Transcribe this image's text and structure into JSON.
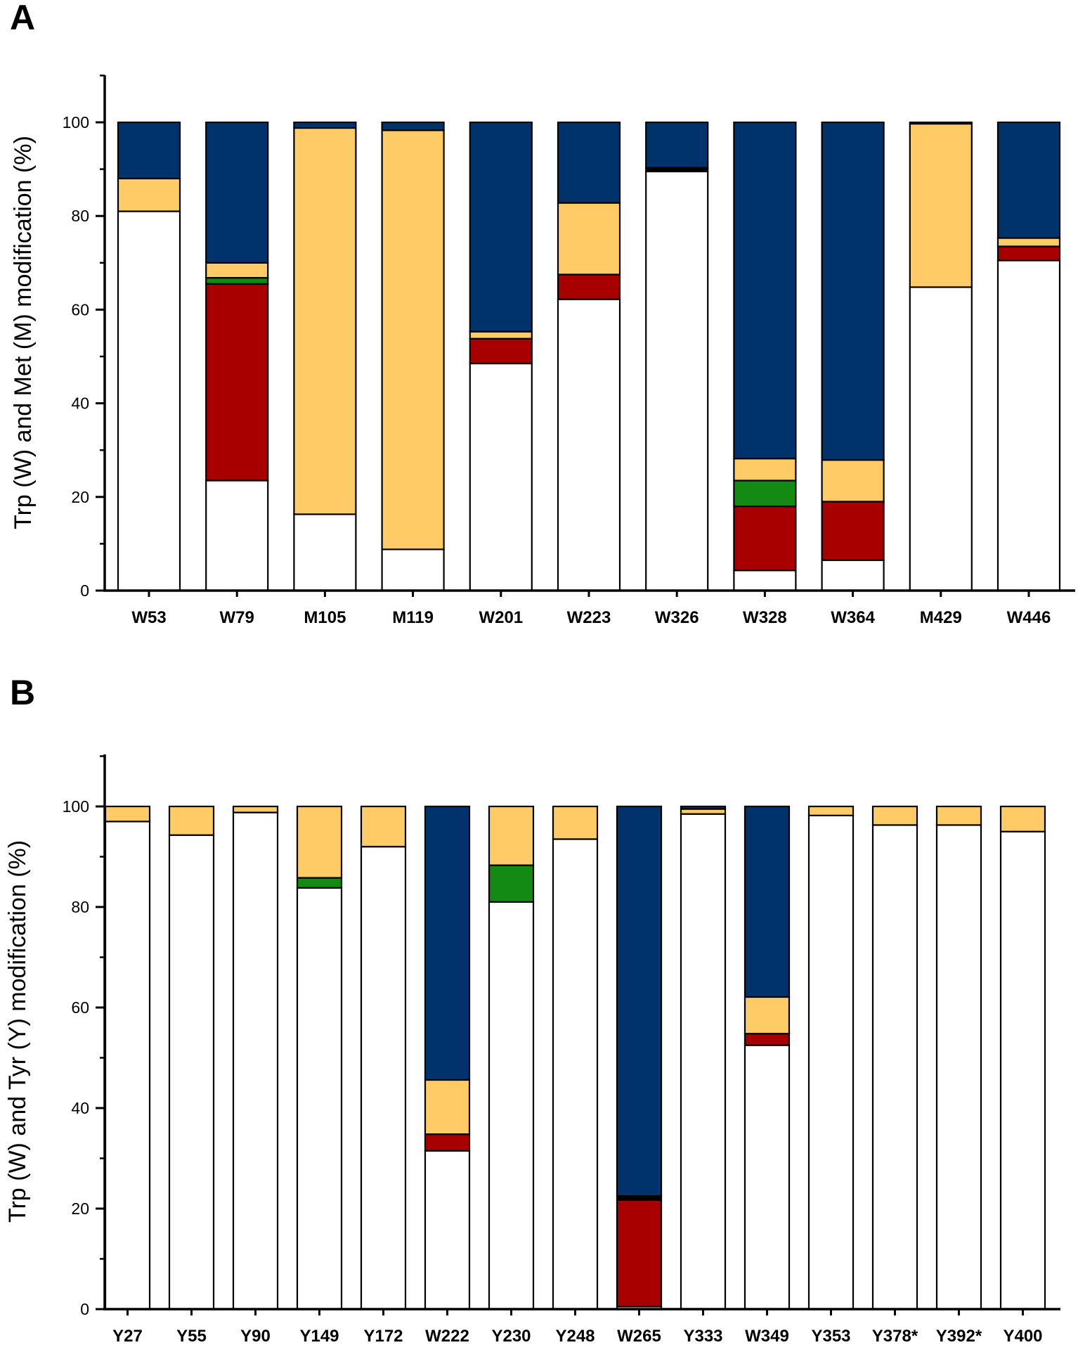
{
  "figure": {
    "panel_labels": [
      "A",
      "B"
    ]
  },
  "chart_data": [
    {
      "panel": "A",
      "type": "bar",
      "stacked": true,
      "ylabel": "Trp (W) and Met (M) modification (%)",
      "xlabel": "",
      "ylim": [
        0,
        110
      ],
      "yticks": [
        0,
        20,
        40,
        60,
        80,
        100
      ],
      "grid": false,
      "categories": [
        "W53",
        "W79",
        "M105",
        "M119",
        "W201",
        "W223",
        "W326",
        "W328",
        "W364",
        "M429",
        "W446"
      ],
      "series": [
        {
          "color": "#ffffff",
          "values": [
            81.0,
            23.5,
            16.3,
            8.8,
            48.5,
            62.2,
            89.5,
            4.3,
            6.5,
            64.8,
            70.5
          ]
        },
        {
          "color": "#a80000",
          "values": [
            0,
            42.0,
            0,
            0,
            5.3,
            5.3,
            0,
            13.7,
            12.5,
            0,
            3.0
          ]
        },
        {
          "color": "#138a13",
          "values": [
            0,
            1.3,
            0,
            0,
            0,
            0,
            0,
            5.5,
            0,
            0,
            0
          ]
        },
        {
          "color": "#ffcb66",
          "values": [
            7.0,
            3.2,
            82.5,
            89.5,
            1.5,
            15.3,
            0,
            4.7,
            8.9,
            34.9,
            1.8
          ]
        },
        {
          "color": "#000000",
          "values": [
            0,
            0,
            0,
            0,
            0,
            0,
            0.8,
            0,
            0,
            0,
            0
          ]
        },
        {
          "color": "#00336b",
          "values": [
            12.0,
            30.0,
            1.2,
            1.7,
            44.7,
            17.2,
            9.7,
            71.8,
            72.1,
            0.3,
            24.7
          ]
        }
      ]
    },
    {
      "panel": "B",
      "type": "bar",
      "stacked": true,
      "ylabel": "Trp (W) and Tyr (Y) modification (%)",
      "xlabel": "",
      "ylim": [
        0,
        110
      ],
      "yticks": [
        0,
        20,
        40,
        60,
        80,
        100
      ],
      "grid": false,
      "categories": [
        "Y27",
        "Y55",
        "Y90",
        "Y149",
        "Y172",
        "W222",
        "Y230",
        "Y248",
        "W265",
        "Y333",
        "W349",
        "Y353",
        "Y378*",
        "Y392*",
        "Y400"
      ],
      "series": [
        {
          "color": "#ffffff",
          "values": [
            97.0,
            94.3,
            98.8,
            83.8,
            92.0,
            31.5,
            81.0,
            93.5,
            0.5,
            98.5,
            52.5,
            98.2,
            96.3,
            96.3,
            95.0
          ]
        },
        {
          "color": "#a80000",
          "values": [
            0,
            0,
            0,
            0,
            0,
            3.3,
            0,
            0,
            21.2,
            0,
            2.3,
            0,
            0,
            0,
            0
          ]
        },
        {
          "color": "#138a13",
          "values": [
            0,
            0,
            0,
            2.0,
            0,
            0,
            7.3,
            0,
            0,
            0,
            0,
            0,
            0,
            0,
            0
          ]
        },
        {
          "color": "#ffcb66",
          "values": [
            3.0,
            5.7,
            1.2,
            14.2,
            8.0,
            10.8,
            11.7,
            6.5,
            0,
            1.0,
            7.3,
            1.8,
            3.7,
            3.7,
            5.0
          ]
        },
        {
          "color": "#000000",
          "values": [
            0,
            0,
            0,
            0,
            0,
            0,
            0,
            0,
            0.8,
            0,
            0,
            0,
            0,
            0,
            0
          ]
        },
        {
          "color": "#00336b",
          "values": [
            0,
            0,
            0,
            0,
            0,
            54.4,
            0,
            0,
            77.5,
            0.5,
            37.9,
            0,
            0,
            0,
            0
          ]
        }
      ]
    }
  ]
}
